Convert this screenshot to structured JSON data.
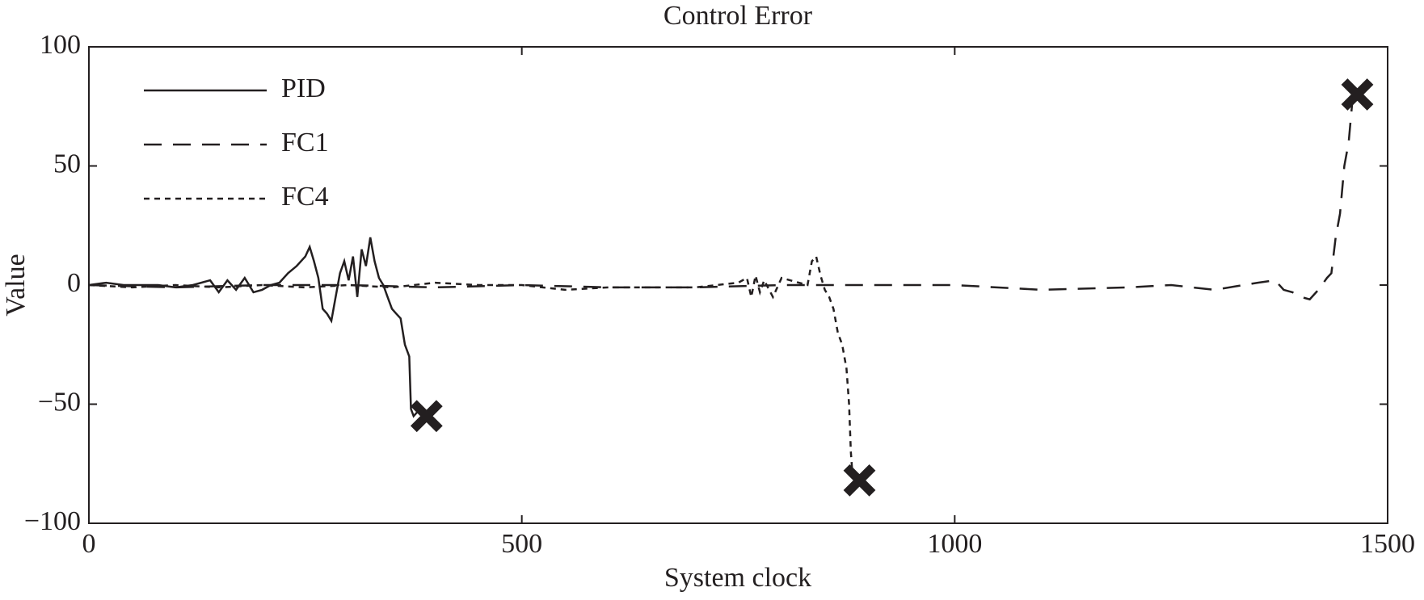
{
  "chart_data": {
    "type": "line",
    "title": "Control Error",
    "x_label": "System clock",
    "y_label": "Value",
    "xlim": [
      0,
      1500
    ],
    "ylim": [
      -100,
      100
    ],
    "xticks": [
      0,
      500,
      1000,
      1500
    ],
    "yticks": [
      {
        "value": -100,
        "label": "−100"
      },
      {
        "value": -50,
        "label": "−50"
      },
      0,
      50,
      100
    ],
    "legend": "upper left",
    "end_marker": "x",
    "series": [
      {
        "name": "PID",
        "color": "#231f20",
        "dash": "none",
        "x": [
          0,
          20,
          40,
          60,
          80,
          100,
          120,
          140,
          150,
          160,
          170,
          180,
          190,
          200,
          210,
          220,
          230,
          240,
          250,
          255,
          260,
          265,
          270,
          275,
          280,
          285,
          290,
          295,
          300,
          305,
          310,
          315,
          320,
          325,
          330,
          335,
          340,
          345,
          350,
          355,
          360,
          365,
          370,
          372,
          375,
          380,
          390
        ],
        "values": [
          0,
          1,
          0,
          0,
          0,
          -1,
          0,
          2,
          -3,
          2,
          -2,
          3,
          -3,
          -2,
          0,
          1,
          5,
          8,
          12,
          16,
          10,
          3,
          -10,
          -12,
          -15,
          -5,
          5,
          10,
          2,
          12,
          -5,
          15,
          8,
          20,
          10,
          3,
          0,
          -5,
          -10,
          -12,
          -14,
          -25,
          -30,
          -52,
          -55,
          -53,
          -55
        ]
      },
      {
        "name": "FC1",
        "color": "#231f20",
        "dash": "22,14",
        "x": [
          0,
          100,
          200,
          300,
          400,
          500,
          600,
          700,
          800,
          900,
          1000,
          1100,
          1200,
          1250,
          1300,
          1350,
          1370,
          1380,
          1390,
          1400,
          1410,
          1420,
          1430,
          1435,
          1440,
          1445,
          1450,
          1455,
          1460,
          1465
        ],
        "values": [
          0,
          -1,
          0,
          0,
          -1,
          0,
          -1,
          -1,
          0,
          0,
          0,
          -2,
          -1,
          0,
          -2,
          1,
          2,
          -2,
          -3,
          -5,
          -6,
          -2,
          3,
          5,
          20,
          30,
          50,
          60,
          80,
          80
        ]
      },
      {
        "name": "FC4",
        "color": "#231f20",
        "dash": "7,6",
        "x": [
          0,
          50,
          100,
          150,
          200,
          250,
          300,
          350,
          400,
          450,
          500,
          550,
          600,
          650,
          700,
          750,
          760,
          765,
          770,
          775,
          780,
          790,
          800,
          820,
          830,
          835,
          840,
          845,
          850,
          855,
          860,
          865,
          870,
          875,
          878,
          880,
          882,
          890
        ],
        "values": [
          0,
          -1,
          0,
          -1,
          0,
          -1,
          0,
          -1,
          1,
          0,
          0,
          -2,
          -1,
          -1,
          -1,
          1,
          3,
          -5,
          4,
          -3,
          2,
          -5,
          3,
          1,
          0,
          10,
          12,
          4,
          -2,
          -5,
          -10,
          -20,
          -25,
          -35,
          -50,
          -70,
          -80,
          -82
        ]
      }
    ]
  }
}
